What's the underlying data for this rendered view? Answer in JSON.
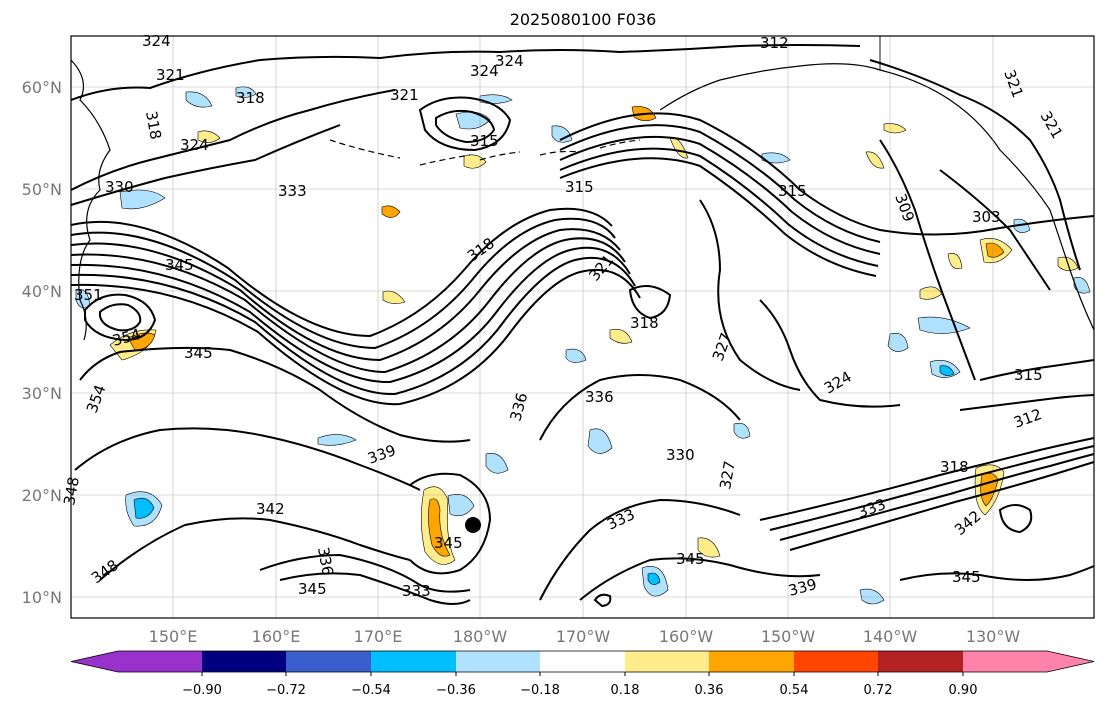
{
  "title": "2025080100 F036",
  "lat_labels": [
    "60°N",
    "50°N",
    "40°N",
    "30°N",
    "20°N",
    "10°N"
  ],
  "lon_labels": [
    "150°E",
    "160°E",
    "170°E",
    "180°W",
    "170°W",
    "160°W",
    "150°W",
    "140°W",
    "130°W"
  ],
  "colorbar": {
    "ticks": [
      "−0.90",
      "−0.72",
      "−0.54",
      "−0.36",
      "−0.18",
      "0.18",
      "0.36",
      "0.54",
      "0.72",
      "0.90"
    ],
    "colors": [
      "#9932cc",
      "#000080",
      "#3a5fcd",
      "#00bfff",
      "#b0e2ff",
      "#ffffff",
      "#ffec8b",
      "#ffa500",
      "#ff4500",
      "#b22222",
      "#ff82ab"
    ]
  },
  "contour_labels": [
    {
      "text": "324"
    },
    {
      "text": "321"
    },
    {
      "text": "318"
    },
    {
      "text": "324"
    },
    {
      "text": "318"
    },
    {
      "text": "321"
    },
    {
      "text": "324"
    },
    {
      "text": "324"
    },
    {
      "text": "315"
    },
    {
      "text": "312"
    },
    {
      "text": "330"
    },
    {
      "text": "333"
    },
    {
      "text": "315"
    },
    {
      "text": "315"
    },
    {
      "text": "309"
    },
    {
      "text": "303"
    },
    {
      "text": "321"
    },
    {
      "text": "321"
    },
    {
      "text": "345"
    },
    {
      "text": "351"
    },
    {
      "text": "318"
    },
    {
      "text": "321"
    },
    {
      "text": "318"
    },
    {
      "text": "327"
    },
    {
      "text": "354"
    },
    {
      "text": "345"
    },
    {
      "text": "354"
    },
    {
      "text": "336"
    },
    {
      "text": "336"
    },
    {
      "text": "324"
    },
    {
      "text": "315"
    },
    {
      "text": "339"
    },
    {
      "text": "330"
    },
    {
      "text": "327"
    },
    {
      "text": "312"
    },
    {
      "text": "318"
    },
    {
      "text": "348"
    },
    {
      "text": "342"
    },
    {
      "text": "333"
    },
    {
      "text": "333"
    },
    {
      "text": "342"
    },
    {
      "text": "345"
    },
    {
      "text": "336"
    },
    {
      "text": "345"
    },
    {
      "text": "333"
    },
    {
      "text": "345"
    },
    {
      "text": "339"
    },
    {
      "text": "345"
    },
    {
      "text": "348"
    }
  ],
  "marker": {
    "label": "storm-center"
  }
}
